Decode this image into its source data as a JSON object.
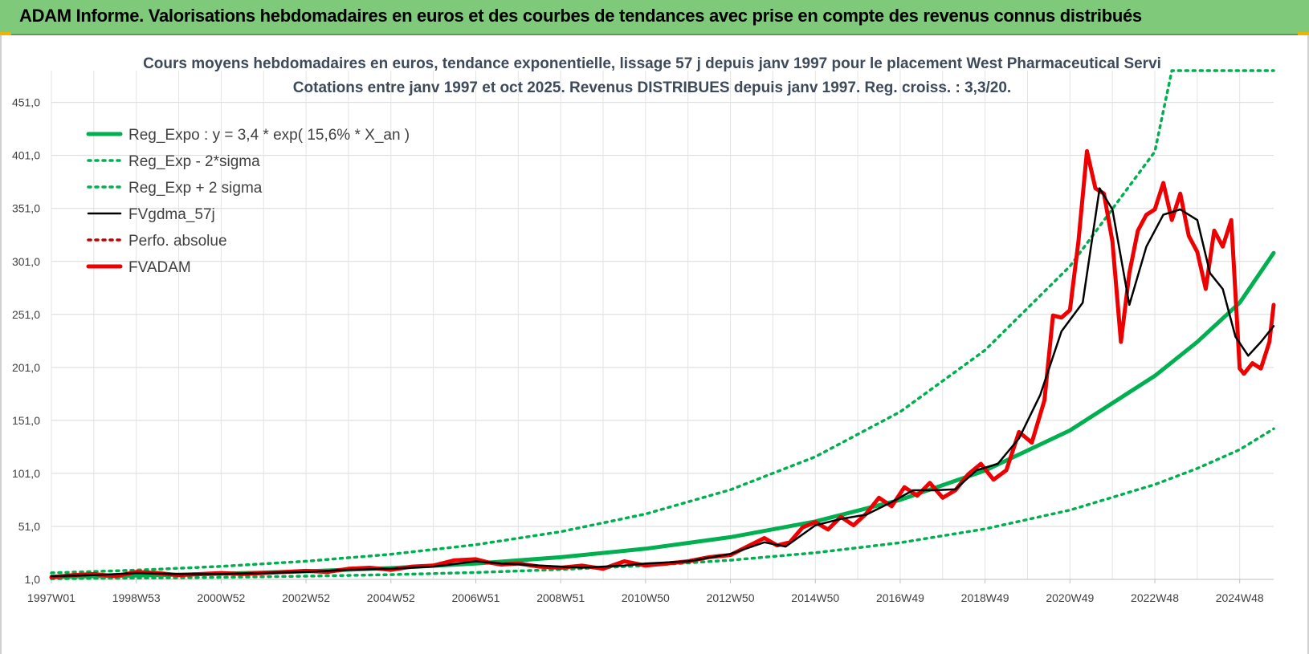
{
  "banner": {
    "title": "ADAM Informe. Valorisations hebdomadaires en euros et des courbes de tendances avec prise en compte des revenus connus distribués",
    "background": "#7ec97a"
  },
  "chart_data": {
    "type": "line",
    "title": "Cours moyens hebdomadaires en euros, tendance exponentielle, lissage 57 j depuis janv 1997 pour le placement West Pharmaceutical Servi",
    "subtitle": "Cotations entre janv 1997 et oct 2025. Revenus DISTRIBUES depuis janv 1997. Reg. croiss. : 3,3/20.",
    "xlabel": "",
    "ylabel": "",
    "x_range": [
      1997.0,
      2025.8
    ],
    "ylim": [
      1.0,
      481.0
    ],
    "y_ticks": [
      "1,0",
      "51,0",
      "101,0",
      "151,0",
      "201,0",
      "251,0",
      "301,0",
      "351,0",
      "401,0",
      "451,0"
    ],
    "x_ticks": [
      {
        "label": "1997W01",
        "x": 1997.0
      },
      {
        "label": "1998W53",
        "x": 1999.0
      },
      {
        "label": "2000W52",
        "x": 2001.0
      },
      {
        "label": "2002W52",
        "x": 2003.0
      },
      {
        "label": "2004W52",
        "x": 2005.0
      },
      {
        "label": "2006W51",
        "x": 2007.0
      },
      {
        "label": "2008W51",
        "x": 2009.0
      },
      {
        "label": "2010W50",
        "x": 2011.0
      },
      {
        "label": "2012W50",
        "x": 2013.0
      },
      {
        "label": "2014W50",
        "x": 2015.0
      },
      {
        "label": "2016W49",
        "x": 2017.0
      },
      {
        "label": "2018W49",
        "x": 2019.0
      },
      {
        "label": "2020W49",
        "x": 2021.0
      },
      {
        "label": "2022W48",
        "x": 2023.0
      },
      {
        "label": "2024W48",
        "x": 2025.0
      }
    ],
    "grid": true,
    "legend_position": "top-left",
    "series": [
      {
        "name": "Reg_Expo : y = 3,4 * exp( 15,6% *  X_an )",
        "style": "solid-thick",
        "color": "#00b050",
        "x": [
          1997.0,
          1999.0,
          2001.0,
          2003.0,
          2005.0,
          2007.0,
          2009.0,
          2011.0,
          2013.0,
          2015.0,
          2017.0,
          2019.0,
          2021.0,
          2023.0,
          2024.0,
          2025.0,
          2025.8
        ],
        "values": [
          3.4,
          4.6,
          6.3,
          8.6,
          11.7,
          16.0,
          21.9,
          29.9,
          40.8,
          55.7,
          76.0,
          103.7,
          141.5,
          193.0,
          225.0,
          262.0,
          309.0
        ]
      },
      {
        "name": "Reg_Exp - 2*sigma",
        "style": "dotted",
        "color": "#00b050",
        "x": [
          1997.0,
          1999.0,
          2001.0,
          2003.0,
          2005.0,
          2007.0,
          2009.0,
          2011.0,
          2013.0,
          2015.0,
          2017.0,
          2019.0,
          2021.0,
          2023.0,
          2024.0,
          2025.0,
          2025.8
        ],
        "values": [
          1.6,
          2.2,
          3.0,
          4.0,
          5.5,
          7.5,
          10.3,
          14.0,
          19.1,
          26.1,
          35.6,
          48.6,
          66.3,
          90.5,
          105.7,
          123.4,
          143.0
        ]
      },
      {
        "name": "Reg_Exp + 2 sigma",
        "style": "dotted",
        "color": "#00b050",
        "x": [
          1997.0,
          1999.0,
          2001.0,
          2003.0,
          2005.0,
          2007.0,
          2009.0,
          2011.0,
          2013.0,
          2015.0,
          2017.0,
          2019.0,
          2021.0,
          2023.0,
          2023.4,
          2025.8
        ],
        "values": [
          7.1,
          9.7,
          13.3,
          18.1,
          24.7,
          33.7,
          46.0,
          62.7,
          85.6,
          116.7,
          159.1,
          217.2,
          296.4,
          404.5,
          481.0,
          481.0
        ]
      },
      {
        "name": "FVgdma_57j",
        "style": "solid",
        "color": "#000000",
        "x": [
          1997.0,
          1998.0,
          1999.0,
          2000.0,
          2001.0,
          2002.0,
          2003.0,
          2004.0,
          2005.0,
          2006.0,
          2007.0,
          2007.6,
          2008.5,
          2009.5,
          2010.5,
          2011.0,
          2012.0,
          2013.0,
          2013.8,
          2014.3,
          2015.0,
          2015.6,
          2016.2,
          2016.8,
          2017.3,
          2017.8,
          2018.3,
          2018.8,
          2019.3,
          2019.8,
          2020.3,
          2020.8,
          2021.3,
          2021.7,
          2022.0,
          2022.4,
          2022.8,
          2023.2,
          2023.6,
          2024.0,
          2024.3,
          2024.6,
          2024.9,
          2025.2,
          2025.5,
          2025.8
        ],
        "values": [
          4,
          5,
          7,
          6,
          6,
          7,
          8,
          10,
          11,
          13,
          18,
          16,
          14,
          12,
          14,
          16,
          18,
          25,
          36,
          32,
          52,
          58,
          62,
          74,
          85,
          85,
          86,
          104,
          110,
          134,
          175,
          235,
          262,
          370,
          350,
          260,
          315,
          345,
          350,
          340,
          290,
          275,
          230,
          212,
          225,
          240
        ]
      },
      {
        "name": "Perfo. absolue",
        "style": "dotted",
        "color": "#c00000",
        "x": [],
        "values": []
      },
      {
        "name": "FVADAM",
        "style": "solid-thick",
        "color": "#ee0000",
        "x": [
          1997.0,
          1997.5,
          1998.0,
          1998.5,
          1999.0,
          1999.5,
          2000.0,
          2000.5,
          2001.0,
          2001.5,
          2002.0,
          2002.5,
          2003.0,
          2003.5,
          2004.0,
          2004.5,
          2005.0,
          2005.5,
          2006.0,
          2006.5,
          2007.0,
          2007.3,
          2007.6,
          2008.0,
          2008.5,
          2009.0,
          2009.5,
          2010.0,
          2010.5,
          2011.0,
          2011.5,
          2012.0,
          2012.5,
          2013.0,
          2013.5,
          2013.8,
          2014.1,
          2014.4,
          2014.7,
          2015.0,
          2015.3,
          2015.6,
          2015.9,
          2016.2,
          2016.5,
          2016.8,
          2017.1,
          2017.4,
          2017.7,
          2018.0,
          2018.3,
          2018.6,
          2018.9,
          2019.2,
          2019.5,
          2019.8,
          2020.1,
          2020.4,
          2020.6,
          2020.8,
          2021.0,
          2021.2,
          2021.4,
          2021.6,
          2021.8,
          2022.0,
          2022.2,
          2022.4,
          2022.6,
          2022.8,
          2023.0,
          2023.2,
          2023.4,
          2023.6,
          2023.8,
          2024.0,
          2024.2,
          2024.4,
          2024.6,
          2024.8,
          2025.0,
          2025.1,
          2025.3,
          2025.5,
          2025.7,
          2025.8
        ],
        "values": [
          3,
          5,
          6,
          4,
          8,
          7,
          5,
          6,
          7,
          6,
          7,
          8,
          9,
          8,
          11,
          12,
          10,
          13,
          14,
          19,
          20,
          17,
          15,
          16,
          13,
          12,
          14,
          11,
          18,
          14,
          16,
          18,
          22,
          24,
          34,
          40,
          33,
          36,
          50,
          55,
          48,
          60,
          52,
          63,
          78,
          70,
          88,
          80,
          92,
          78,
          85,
          100,
          110,
          95,
          104,
          140,
          130,
          170,
          250,
          248,
          255,
          320,
          405,
          370,
          365,
          320,
          225,
          290,
          330,
          345,
          350,
          375,
          340,
          365,
          325,
          310,
          275,
          330,
          315,
          340,
          200,
          195,
          205,
          200,
          225,
          260
        ]
      }
    ]
  }
}
